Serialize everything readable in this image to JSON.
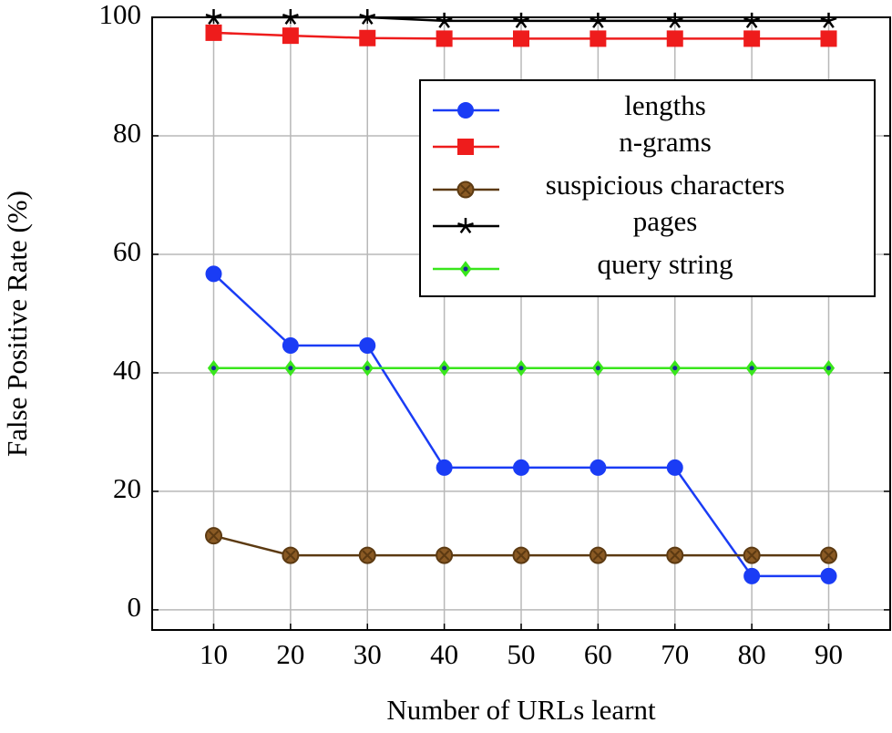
{
  "chart_data": {
    "type": "line",
    "x_label": "Number of URLs learnt",
    "y_label": "False Positive Rate (%)",
    "x": [
      10,
      20,
      30,
      40,
      50,
      60,
      70,
      80,
      90
    ],
    "xlim": [
      2,
      98
    ],
    "ylim": [
      -3.4,
      100
    ],
    "xticks": [
      10,
      20,
      30,
      40,
      50,
      60,
      70,
      80,
      90
    ],
    "yticks": [
      0,
      20,
      40,
      60,
      80,
      100
    ],
    "grid": true,
    "legend": "upper right",
    "series": [
      {
        "name": "lengths",
        "color": "#1a3cf5",
        "marker": "circle",
        "values": [
          56.7,
          44.6,
          44.6,
          24,
          24,
          24,
          24,
          5.7,
          5.7
        ]
      },
      {
        "name": "n-grams",
        "color": "#ee1c1c",
        "marker": "square",
        "values": [
          97.4,
          96.9,
          96.5,
          96.4,
          96.4,
          96.4,
          96.4,
          96.4,
          96.4
        ]
      },
      {
        "name": "suspicious characters",
        "color": "#5c3a12",
        "marker": "circle-x",
        "values": [
          12.5,
          9.2,
          9.2,
          9.2,
          9.2,
          9.2,
          9.2,
          9.2,
          9.2
        ]
      },
      {
        "name": "pages",
        "color": "#000000",
        "marker": "star",
        "values": [
          100,
          100,
          100,
          99.4,
          99.4,
          99.4,
          99.4,
          99.4,
          99.4
        ]
      },
      {
        "name": "query string",
        "color": "#39e61c",
        "marker": "diamond",
        "values": [
          40.8,
          40.8,
          40.8,
          40.8,
          40.8,
          40.8,
          40.8,
          40.8,
          40.8
        ]
      }
    ]
  }
}
